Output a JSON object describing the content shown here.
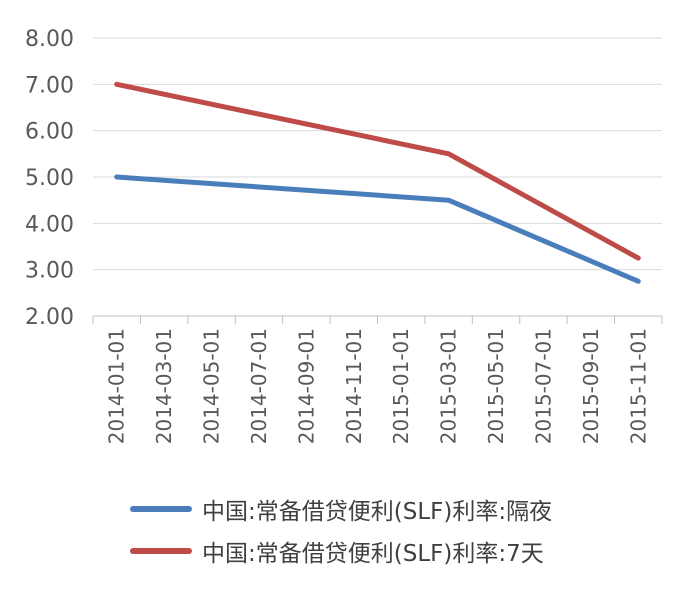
{
  "chart_data": {
    "type": "line",
    "x": [
      "2014-01-01",
      "2014-03-01",
      "2014-05-01",
      "2014-07-01",
      "2014-09-01",
      "2014-11-01",
      "2015-01-01",
      "2015-03-01",
      "2015-05-01",
      "2015-07-01",
      "2015-09-01",
      "2015-11-01"
    ],
    "y_ticks": [
      "2.00",
      "3.00",
      "4.00",
      "5.00",
      "6.00",
      "7.00",
      "8.00"
    ],
    "ylim": [
      2,
      8
    ],
    "grid": true,
    "legend_position": "bottom",
    "series": [
      {
        "name": "中国:常备借贷便利(SLF)利率:隔夜",
        "color": "#4a7ebb",
        "points": [
          [
            "2014-01-01",
            5.0
          ],
          [
            "2015-03-01",
            4.5
          ],
          [
            "2015-11-01",
            2.75
          ]
        ]
      },
      {
        "name": "中国:常备借贷便利(SLF)利率:7天",
        "color": "#be4b48",
        "points": [
          [
            "2014-01-01",
            7.0
          ],
          [
            "2015-03-01",
            5.5
          ],
          [
            "2015-11-01",
            3.25
          ]
        ]
      }
    ]
  }
}
